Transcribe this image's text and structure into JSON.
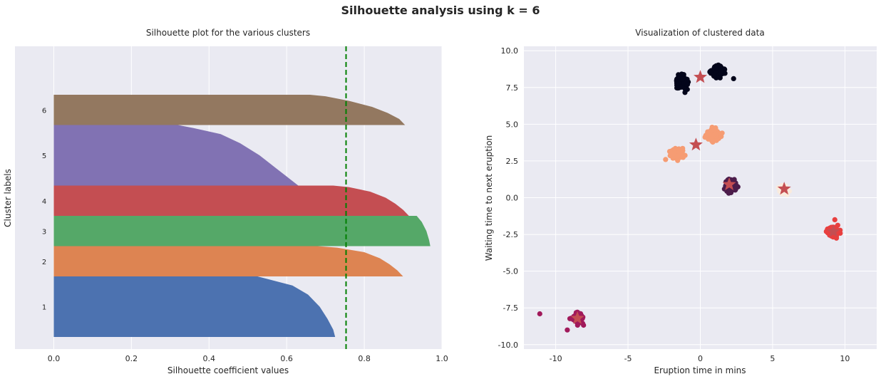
{
  "figure_title": "Silhouette analysis using k = 6",
  "colors": {
    "panel_bg": "#EAEAF2",
    "grid": "#ffffff",
    "average_line": "#008000",
    "cluster_colors": [
      "#4C72B0",
      "#DD8452",
      "#55A868",
      "#C44E52",
      "#8172B3",
      "#937860"
    ],
    "scatter_colors": [
      "#03051A",
      "#4C1D4B",
      "#A11A5B",
      "#E83F3F",
      "#F69C73",
      "#FAEBDD"
    ],
    "center_marker": "#C44E52"
  },
  "chart_data": [
    {
      "type": "area",
      "title": "Silhouette plot for the various clusters",
      "xlabel": "Silhouette coefficient values",
      "ylabel": "Cluster labels",
      "xlim": [
        -0.1,
        1.0
      ],
      "ylim": [
        0,
        100
      ],
      "xticks": [
        "0.0",
        "0.2",
        "0.4",
        "0.6",
        "0.8",
        "1.0"
      ],
      "grid": true,
      "average_silhouette": 0.753,
      "clusters": [
        {
          "label": "1",
          "y_range": [
            4,
            24
          ],
          "profile": [
            [
              0,
              0.725
            ],
            [
              0.12,
              0.72
            ],
            [
              0.3,
              0.705
            ],
            [
              0.5,
              0.685
            ],
            [
              0.7,
              0.655
            ],
            [
              0.85,
              0.615
            ],
            [
              0.95,
              0.555
            ],
            [
              1,
              0.525
            ]
          ]
        },
        {
          "label": "2",
          "y_range": [
            24,
            34
          ],
          "profile": [
            [
              0,
              0.9
            ],
            [
              0.2,
              0.885
            ],
            [
              0.4,
              0.865
            ],
            [
              0.6,
              0.84
            ],
            [
              0.8,
              0.8
            ],
            [
              0.95,
              0.73
            ],
            [
              1,
              0.68
            ]
          ]
        },
        {
          "label": "3",
          "y_range": [
            34,
            44
          ],
          "profile": [
            [
              0,
              0.97
            ],
            [
              0.2,
              0.967
            ],
            [
              0.5,
              0.96
            ],
            [
              0.8,
              0.948
            ],
            [
              1,
              0.935
            ]
          ]
        },
        {
          "label": "4",
          "y_range": [
            44,
            54
          ],
          "profile": [
            [
              0,
              0.915
            ],
            [
              0.2,
              0.9
            ],
            [
              0.4,
              0.88
            ],
            [
              0.6,
              0.855
            ],
            [
              0.8,
              0.815
            ],
            [
              0.95,
              0.76
            ],
            [
              1,
              0.72
            ]
          ]
        },
        {
          "label": "5",
          "y_range": [
            54,
            74
          ],
          "profile": [
            [
              0,
              0.63
            ],
            [
              0.15,
              0.6
            ],
            [
              0.3,
              0.57
            ],
            [
              0.5,
              0.53
            ],
            [
              0.7,
              0.48
            ],
            [
              0.85,
              0.43
            ],
            [
              0.95,
              0.36
            ],
            [
              1,
              0.32
            ]
          ]
        },
        {
          "label": "6",
          "y_range": [
            74,
            84
          ],
          "profile": [
            [
              0,
              0.905
            ],
            [
              0.2,
              0.89
            ],
            [
              0.4,
              0.86
            ],
            [
              0.6,
              0.82
            ],
            [
              0.8,
              0.76
            ],
            [
              0.95,
              0.7
            ],
            [
              1,
              0.66
            ]
          ]
        }
      ]
    },
    {
      "type": "scatter",
      "title": "Visualization of clustered data",
      "xlabel": "Eruption time in mins",
      "ylabel": "Waiting time to next eruption",
      "xlim": [
        -12.2,
        12.2
      ],
      "ylim": [
        -10.3,
        10.3
      ],
      "xticks": [
        "-10",
        "-5",
        "0",
        "5",
        "10"
      ],
      "yticks": [
        "10.0",
        "7.5",
        "5.0",
        "2.5",
        "0.0",
        "-2.5",
        "-5.0",
        "-7.5",
        "-10.0"
      ],
      "grid": true,
      "groups": [
        {
          "center": [
            -1.3,
            7.9
          ],
          "spread": [
            0.3,
            0.35
          ],
          "color_index": 0
        },
        {
          "center": [
            1.2,
            8.6
          ],
          "spread": [
            0.35,
            0.3
          ],
          "color_index": 0
        },
        {
          "center": [
            2.1,
            0.8
          ],
          "spread": [
            0.3,
            0.35
          ],
          "color_index": 1
        },
        {
          "center": [
            -8.5,
            -8.2
          ],
          "spread": [
            0.3,
            0.3
          ],
          "color_index": 2
        },
        {
          "center": [
            9.2,
            -2.3
          ],
          "spread": [
            0.35,
            0.25
          ],
          "color_index": 3
        },
        {
          "center": [
            -1.6,
            3.0
          ],
          "spread": [
            0.35,
            0.3
          ],
          "color_index": 4
        },
        {
          "center": [
            0.9,
            4.3
          ],
          "spread": [
            0.35,
            0.3
          ],
          "color_index": 4
        },
        {
          "center": [
            5.8,
            0.5
          ],
          "spread": [
            0.25,
            0.25
          ],
          "color_index": 5
        }
      ],
      "outliers": [
        [
          -11.1,
          -7.9
        ],
        [
          -9.2,
          -9.0
        ],
        [
          2.3,
          8.1
        ],
        [
          -2.4,
          2.6
        ],
        [
          9.3,
          -1.5
        ]
      ],
      "centers": [
        [
          0.0,
          8.2
        ],
        [
          -0.3,
          3.6
        ],
        [
          2.0,
          0.9
        ],
        [
          5.8,
          0.6
        ],
        [
          9.2,
          -2.3
        ],
        [
          -8.5,
          -8.2
        ]
      ]
    }
  ]
}
